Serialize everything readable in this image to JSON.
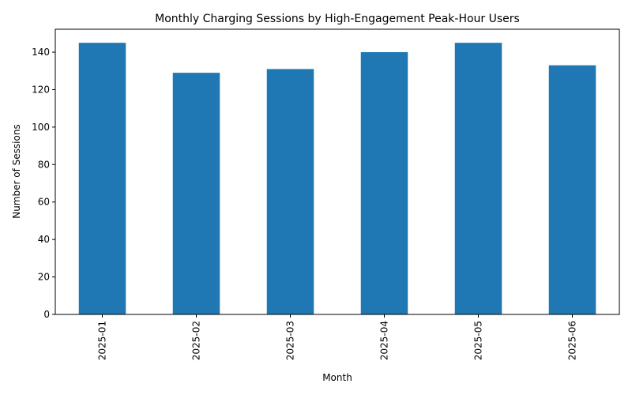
{
  "chart_data": {
    "type": "bar",
    "title": "Monthly Charging Sessions by High-Engagement Peak-Hour Users",
    "xlabel": "Month",
    "ylabel": "Number of Sessions",
    "categories": [
      "2025-01",
      "2025-02",
      "2025-03",
      "2025-04",
      "2025-05",
      "2025-06"
    ],
    "values": [
      145,
      129,
      131,
      140,
      145,
      133
    ],
    "ylim": [
      0,
      152.25
    ],
    "yticks": [
      0,
      20,
      40,
      60,
      80,
      100,
      120,
      140
    ],
    "bar_color": "#1f77b4",
    "grid": false,
    "legend": "none"
  }
}
